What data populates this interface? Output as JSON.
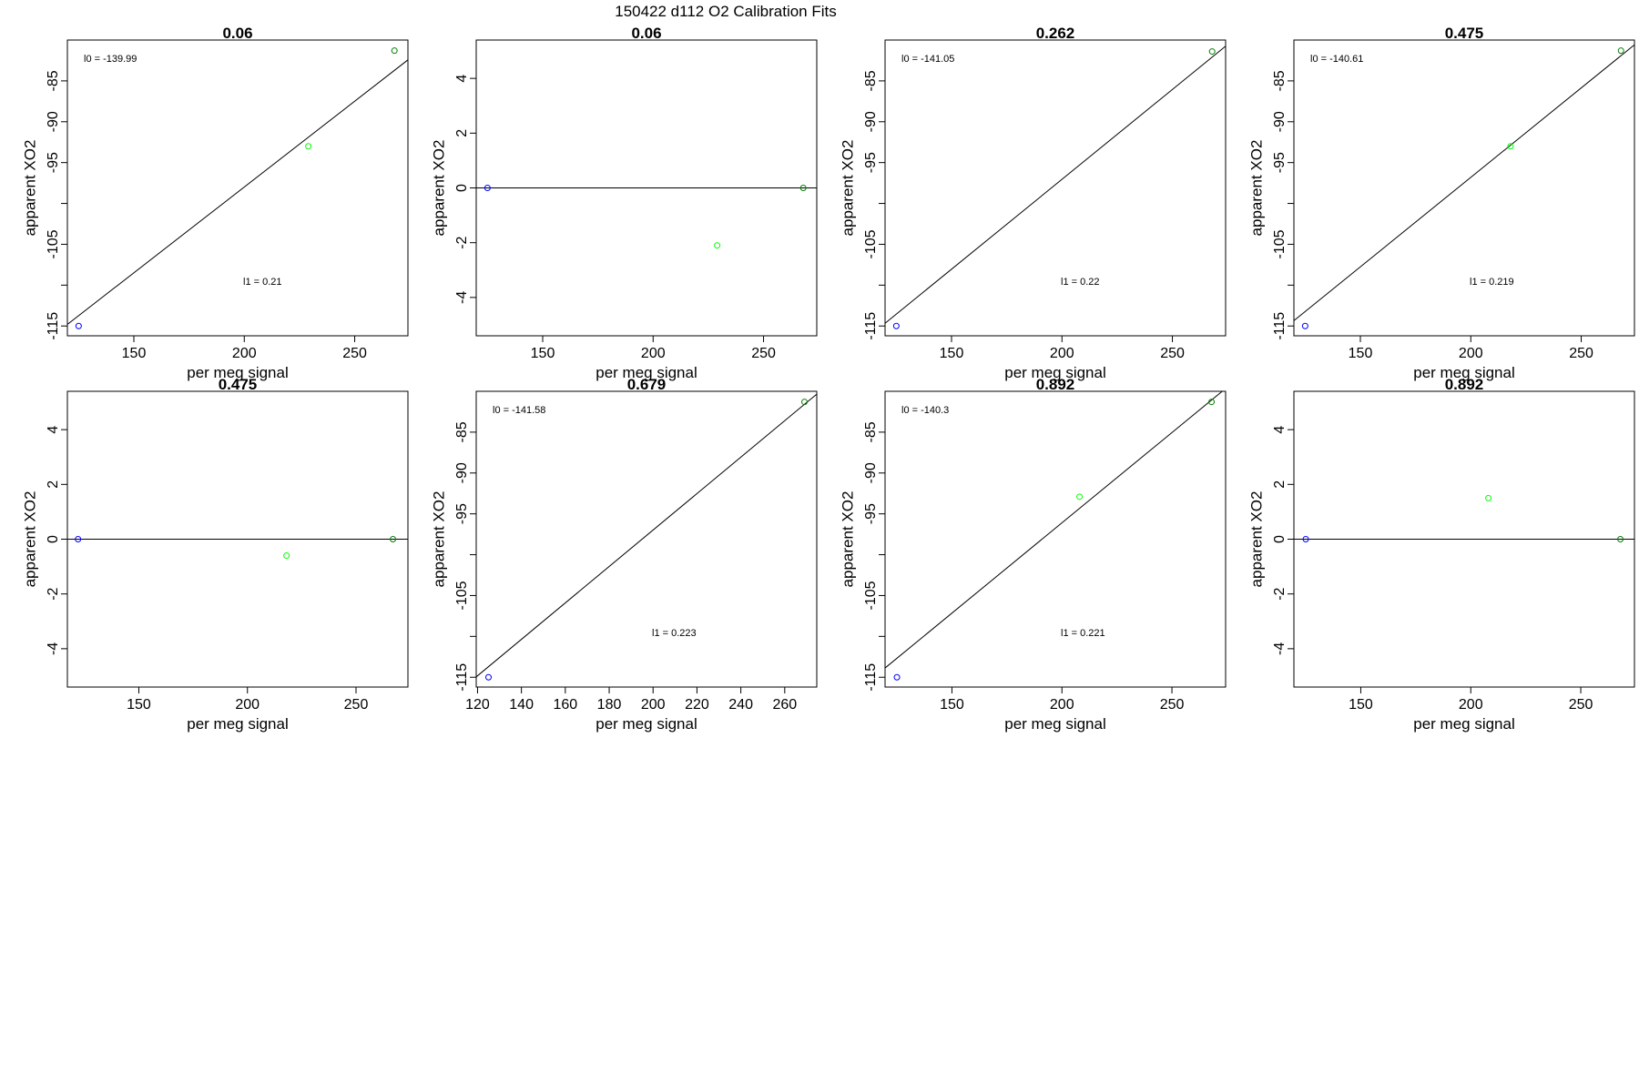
{
  "figure": {
    "title": "150422   d112   O2 Calibration Fits"
  },
  "chart_data": [
    {
      "type": "scatter",
      "title": "0.06",
      "xlabel": "per meg signal",
      "ylabel": "apparent XO2",
      "xlim": [
        119.9,
        274.1
      ],
      "ylim": [
        -116.2,
        -80.0
      ],
      "xticks": [
        150,
        200,
        250
      ],
      "yticks": [
        -115,
        -110,
        -105,
        -100,
        -95,
        -90,
        -85
      ],
      "ytick_labels": [
        "-115",
        "",
        "-105",
        "",
        "-95",
        "-90",
        "-85"
      ],
      "points": [
        {
          "x": 125,
          "y": -115.0,
          "color": "#0000ff"
        },
        {
          "x": 229,
          "y": -93.0,
          "color": "#00ff00"
        },
        {
          "x": 268,
          "y": -81.3,
          "color": "#008000"
        }
      ],
      "fit_line": {
        "intercept": -139.99,
        "slope": 0.21
      },
      "annotations": {
        "l0": "l0 =  -139.99",
        "l1": "l1 =  0.21"
      }
    },
    {
      "type": "scatter",
      "title": "0.06",
      "xlabel": "per meg signal",
      "ylabel": "apparent XO2",
      "xlim": [
        119.9,
        274.1
      ],
      "ylim": [
        -5.4,
        5.4
      ],
      "xticks": [
        150,
        200,
        250
      ],
      "yticks": [
        -4,
        -2,
        0,
        2,
        4
      ],
      "ytick_labels": [
        "-4",
        "-2",
        "0",
        "2",
        "4"
      ],
      "points": [
        {
          "x": 125,
          "y": 0.0,
          "color": "#0000ff"
        },
        {
          "x": 229,
          "y": -2.1,
          "color": "#00ff00"
        },
        {
          "x": 268,
          "y": 0.0,
          "color": "#008000"
        }
      ],
      "hline": 0,
      "annotations": {}
    },
    {
      "type": "scatter",
      "title": "0.262",
      "xlabel": "per meg signal",
      "ylabel": "apparent XO2",
      "xlim": [
        119.9,
        274.1
      ],
      "ylim": [
        -116.2,
        -80.0
      ],
      "xticks": [
        150,
        200,
        250
      ],
      "yticks": [
        -115,
        -110,
        -105,
        -100,
        -95,
        -90,
        -85
      ],
      "ytick_labels": [
        "-115",
        "",
        "-105",
        "",
        "-95",
        "-90",
        "-85"
      ],
      "points": [
        {
          "x": 125,
          "y": -115.0,
          "color": "#0000ff"
        },
        {
          "x": 268,
          "y": -81.4,
          "color": "#008000"
        }
      ],
      "fit_line": {
        "intercept": -141.05,
        "slope": 0.22
      },
      "annotations": {
        "l0": "l0 =  -141.05",
        "l1": "l1 =  0.22"
      }
    },
    {
      "type": "scatter",
      "title": "0.475",
      "xlabel": "per meg signal",
      "ylabel": "apparent XO2",
      "xlim": [
        119.9,
        274.1
      ],
      "ylim": [
        -116.2,
        -80.0
      ],
      "xticks": [
        150,
        200,
        250
      ],
      "yticks": [
        -115,
        -110,
        -105,
        -100,
        -95,
        -90,
        -85
      ],
      "ytick_labels": [
        "-115",
        "",
        "-105",
        "",
        "-95",
        "-90",
        "-85"
      ],
      "points": [
        {
          "x": 125,
          "y": -115.0,
          "color": "#0000ff"
        },
        {
          "x": 218,
          "y": -93.0,
          "color": "#00ff00"
        },
        {
          "x": 268,
          "y": -81.3,
          "color": "#008000"
        }
      ],
      "fit_line": {
        "intercept": -140.61,
        "slope": 0.219
      },
      "annotations": {
        "l0": "l0 =  -140.61",
        "l1": "l1 =  0.219"
      }
    },
    {
      "type": "scatter",
      "title": "0.475",
      "xlabel": "per meg signal",
      "ylabel": "apparent XO2",
      "xlim": [
        117.1,
        273.9
      ],
      "ylim": [
        -5.4,
        5.4
      ],
      "xticks": [
        150,
        200,
        250
      ],
      "yticks": [
        -4,
        -2,
        0,
        2,
        4
      ],
      "ytick_labels": [
        "-4",
        "-2",
        "0",
        "2",
        "4"
      ],
      "points": [
        {
          "x": 122,
          "y": 0.0,
          "color": "#0000ff"
        },
        {
          "x": 218,
          "y": -0.6,
          "color": "#00ff00"
        },
        {
          "x": 267,
          "y": 0.0,
          "color": "#008000"
        }
      ],
      "hline": 0,
      "annotations": {}
    },
    {
      "type": "scatter",
      "title": "0.679",
      "xlabel": "per meg signal",
      "ylabel": "apparent XO2",
      "xlim": [
        119.4,
        274.6
      ],
      "ylim": [
        -116.2,
        -80.0
      ],
      "xticks": [
        120,
        140,
        160,
        180,
        200,
        220,
        240,
        260
      ],
      "yticks": [
        -115,
        -110,
        -105,
        -100,
        -95,
        -90,
        -85
      ],
      "ytick_labels": [
        "-115",
        "",
        "-105",
        "",
        "-95",
        "-90",
        "-85"
      ],
      "points": [
        {
          "x": 125,
          "y": -115.0,
          "color": "#0000ff"
        },
        {
          "x": 269,
          "y": -81.3,
          "color": "#008000"
        }
      ],
      "fit_line": {
        "intercept": -141.58,
        "slope": 0.223
      },
      "annotations": {
        "l0": "l0 =  -141.58",
        "l1": "l1 =  0.223"
      }
    },
    {
      "type": "scatter",
      "title": "0.892",
      "xlabel": "per meg signal",
      "ylabel": "apparent XO2",
      "xlim": [
        119.6,
        274.4
      ],
      "ylim": [
        -116.2,
        -80.0
      ],
      "xticks": [
        150,
        200,
        250
      ],
      "yticks": [
        -115,
        -110,
        -105,
        -100,
        -95,
        -90,
        -85
      ],
      "ytick_labels": [
        "-115",
        "",
        "-105",
        "",
        "-95",
        "-90",
        "-85"
      ],
      "points": [
        {
          "x": 125,
          "y": -115.0,
          "color": "#0000ff"
        },
        {
          "x": 208,
          "y": -92.9,
          "color": "#00ff00"
        },
        {
          "x": 268,
          "y": -81.3,
          "color": "#008000"
        }
      ],
      "fit_line": {
        "intercept": -140.3,
        "slope": 0.221
      },
      "annotations": {
        "l0": "l0 =  -140.3",
        "l1": "l1 =  0.221"
      }
    },
    {
      "type": "scatter",
      "title": "0.892",
      "xlabel": "per meg signal",
      "ylabel": "apparent XO2",
      "xlim": [
        119.6,
        274.4
      ],
      "ylim": [
        -5.4,
        5.4
      ],
      "xticks": [
        150,
        200,
        250
      ],
      "yticks": [
        -4,
        -2,
        0,
        2,
        4
      ],
      "ytick_labels": [
        "-4",
        "-2",
        "0",
        "2",
        "4"
      ],
      "points": [
        {
          "x": 125,
          "y": 0.0,
          "color": "#0000ff"
        },
        {
          "x": 208,
          "y": 1.5,
          "color": "#00ff00"
        },
        {
          "x": 268,
          "y": 0.0,
          "color": "#008000"
        }
      ],
      "hline": 0,
      "annotations": {}
    }
  ]
}
